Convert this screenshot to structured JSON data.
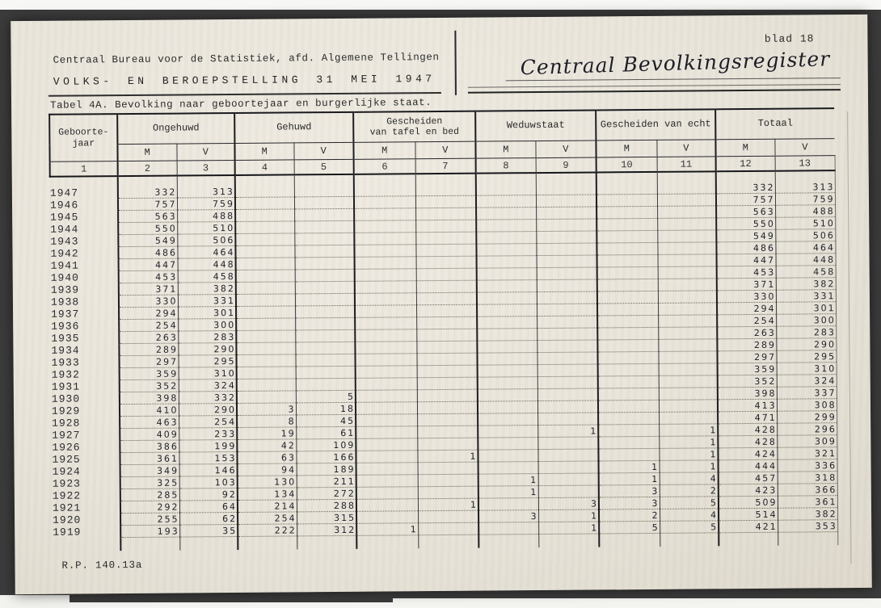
{
  "colors": {
    "paper": "#e9e5db",
    "scan_background": "#3b3b3b",
    "typed_ink": "#2b2b2b",
    "handwritten_ink": "#23232c",
    "table_line": "#1d1d22"
  },
  "page": {
    "page_label": "blad 18",
    "org_line": "Centraal Bureau voor de Statistiek, afd. Algemene Tellingen",
    "census_line": "VOLKS- EN BEROEPSTELLING 31 MEI 1947",
    "handwritten_register": "Centraal Bevolkingsregister",
    "table_title": "Tabel 4A. Bevolking naar geboortejaar en burgerlijke staat.",
    "footer_code": "R.P. 140.13a"
  },
  "table": {
    "row_header": {
      "label_lines": [
        "Geboorte-",
        "jaar"
      ],
      "col_no": "1"
    },
    "sex_labels": [
      "M",
      "V"
    ],
    "groups": [
      {
        "key": "ongehuwd",
        "label_lines": [
          "Ongehuwd"
        ],
        "col_nos": [
          "2",
          "3"
        ]
      },
      {
        "key": "gehuwd",
        "label_lines": [
          "Gehuwd"
        ],
        "col_nos": [
          "4",
          "5"
        ]
      },
      {
        "key": "gescheiden-tafel-bed",
        "label_lines": [
          "Gescheiden",
          "van tafel en bed"
        ],
        "col_nos": [
          "6",
          "7"
        ]
      },
      {
        "key": "weduwstaat",
        "label_lines": [
          "Weduwstaat"
        ],
        "col_nos": [
          "8",
          "9"
        ]
      },
      {
        "key": "gescheiden-van-echt",
        "label_lines": [
          "Gescheiden van echt"
        ],
        "col_nos": [
          "10",
          "11"
        ]
      },
      {
        "key": "totaal",
        "label_lines": [
          "Totaal"
        ],
        "col_nos": [
          "12",
          "13"
        ]
      }
    ],
    "column_keys": [
      "ongehuwd_m",
      "ongehuwd_v",
      "gehuwd_m",
      "gehuwd_v",
      "gesch_tafel_bed_m",
      "gesch_tafel_bed_v",
      "weduwstaat_m",
      "weduwstaat_v",
      "gesch_echt_m",
      "gesch_echt_v",
      "totaal_m",
      "totaal_v"
    ],
    "rows": [
      {
        "year": "1947",
        "values": [
          "332",
          "313",
          "",
          "",
          "",
          "",
          "",
          "",
          "",
          "",
          "332",
          "313"
        ]
      },
      {
        "year": "1946",
        "values": [
          "757",
          "759",
          "",
          "",
          "",
          "",
          "",
          "",
          "",
          "",
          "757",
          "759"
        ]
      },
      {
        "year": "1945",
        "values": [
          "563",
          "488",
          "",
          "",
          "",
          "",
          "",
          "",
          "",
          "",
          "563",
          "488"
        ]
      },
      {
        "year": "1944",
        "values": [
          "550",
          "510",
          "",
          "",
          "",
          "",
          "",
          "",
          "",
          "",
          "550",
          "510"
        ]
      },
      {
        "year": "1943",
        "values": [
          "549",
          "506",
          "",
          "",
          "",
          "",
          "",
          "",
          "",
          "",
          "549",
          "506"
        ]
      },
      {
        "year": "1942",
        "values": [
          "486",
          "464",
          "",
          "",
          "",
          "",
          "",
          "",
          "",
          "",
          "486",
          "464"
        ]
      },
      {
        "year": "1941",
        "values": [
          "447",
          "448",
          "",
          "",
          "",
          "",
          "",
          "",
          "",
          "",
          "447",
          "448"
        ]
      },
      {
        "year": "1940",
        "values": [
          "453",
          "458",
          "",
          "",
          "",
          "",
          "",
          "",
          "",
          "",
          "453",
          "458"
        ]
      },
      {
        "year": "1939",
        "values": [
          "371",
          "382",
          "",
          "",
          "",
          "",
          "",
          "",
          "",
          "",
          "371",
          "382"
        ]
      },
      {
        "year": "1938",
        "values": [
          "330",
          "331",
          "",
          "",
          "",
          "",
          "",
          "",
          "",
          "",
          "330",
          "331"
        ]
      },
      {
        "year": "1937",
        "values": [
          "294",
          "301",
          "",
          "",
          "",
          "",
          "",
          "",
          "",
          "",
          "294",
          "301"
        ]
      },
      {
        "year": "1936",
        "values": [
          "254",
          "300",
          "",
          "",
          "",
          "",
          "",
          "",
          "",
          "",
          "254",
          "300"
        ]
      },
      {
        "year": "1935",
        "values": [
          "263",
          "283",
          "",
          "",
          "",
          "",
          "",
          "",
          "",
          "",
          "263",
          "283"
        ]
      },
      {
        "year": "1934",
        "values": [
          "289",
          "290",
          "",
          "",
          "",
          "",
          "",
          "",
          "",
          "",
          "289",
          "290"
        ]
      },
      {
        "year": "1933",
        "values": [
          "297",
          "295",
          "",
          "",
          "",
          "",
          "",
          "",
          "",
          "",
          "297",
          "295"
        ]
      },
      {
        "year": "1932",
        "values": [
          "359",
          "310",
          "",
          "",
          "",
          "",
          "",
          "",
          "",
          "",
          "359",
          "310"
        ]
      },
      {
        "year": "1931",
        "values": [
          "352",
          "324",
          "",
          "",
          "",
          "",
          "",
          "",
          "",
          "",
          "352",
          "324"
        ]
      },
      {
        "year": "1930",
        "values": [
          "398",
          "332",
          "",
          "5",
          "",
          "",
          "",
          "",
          "",
          "",
          "398",
          "337"
        ]
      },
      {
        "year": "1929",
        "values": [
          "410",
          "290",
          "3",
          "18",
          "",
          "",
          "",
          "",
          "",
          "",
          "413",
          "308"
        ]
      },
      {
        "year": "1928",
        "values": [
          "463",
          "254",
          "8",
          "45",
          "",
          "",
          "",
          "",
          "",
          "",
          "471",
          "299"
        ]
      },
      {
        "year": "1927",
        "values": [
          "409",
          "233",
          "19",
          "61",
          "",
          "",
          "",
          "1",
          "",
          "1",
          "428",
          "296"
        ]
      },
      {
        "year": "1926",
        "values": [
          "386",
          "199",
          "42",
          "109",
          "",
          "",
          "",
          "",
          "",
          "1",
          "428",
          "309"
        ]
      },
      {
        "year": "1925",
        "values": [
          "361",
          "153",
          "63",
          "166",
          "",
          "1",
          "",
          "",
          "",
          "1",
          "424",
          "321"
        ]
      },
      {
        "year": "1924",
        "values": [
          "349",
          "146",
          "94",
          "189",
          "",
          "",
          "",
          "",
          "1",
          "1",
          "444",
          "336"
        ]
      },
      {
        "year": "1923",
        "values": [
          "325",
          "103",
          "130",
          "211",
          "",
          "",
          "1",
          "",
          "1",
          "4",
          "457",
          "318"
        ]
      },
      {
        "year": "1922",
        "values": [
          "285",
          "92",
          "134",
          "272",
          "",
          "",
          "1",
          "",
          "3",
          "2",
          "423",
          "366"
        ]
      },
      {
        "year": "1921",
        "values": [
          "292",
          "64",
          "214",
          "288",
          "",
          "1",
          "",
          "3",
          "3",
          "5",
          "509",
          "361"
        ]
      },
      {
        "year": "1920",
        "values": [
          "255",
          "62",
          "254",
          "315",
          "",
          "",
          "3",
          "1",
          "2",
          "4",
          "514",
          "382"
        ]
      },
      {
        "year": "1919",
        "values": [
          "193",
          "35",
          "222",
          "312",
          "1",
          "",
          "",
          "1",
          "5",
          "5",
          "421",
          "353"
        ]
      }
    ]
  }
}
